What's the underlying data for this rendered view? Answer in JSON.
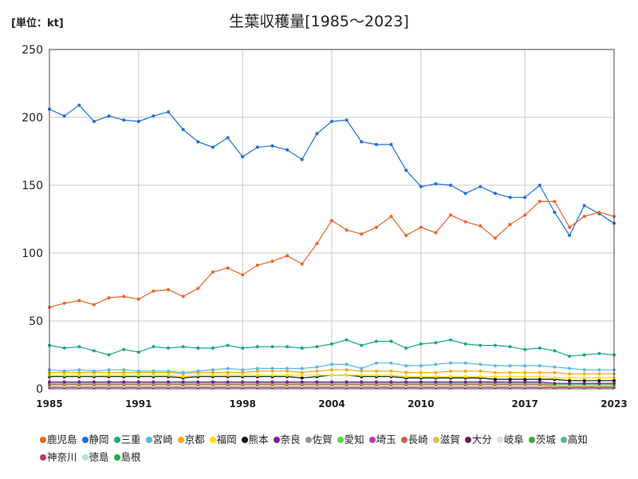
{
  "unit_label": "[単位：kt]",
  "title": "生葉収穫量[1985～2023]",
  "chart_data": {
    "type": "line",
    "title": "生葉収穫量[1985～2023]",
    "unit": "[単位：kt]",
    "x": [
      1985,
      1986,
      1987,
      1988,
      1989,
      1990,
      1991,
      1992,
      1993,
      1994,
      1995,
      1996,
      1997,
      1998,
      1999,
      2000,
      2001,
      2002,
      2003,
      2004,
      2005,
      2006,
      2007,
      2008,
      2009,
      2010,
      2011,
      2012,
      2013,
      2014,
      2015,
      2016,
      2017,
      2018,
      2019,
      2020,
      2021,
      2022,
      2023
    ],
    "xticks": [
      1985,
      1991,
      1998,
      2004,
      2010,
      2017,
      2023
    ],
    "ylim": [
      0,
      250
    ],
    "yticks": [
      0,
      50,
      100,
      150,
      200,
      250
    ],
    "grid": true,
    "legend_position": "bottom",
    "series": [
      {
        "name": "鹿児島",
        "color": "#e8642a",
        "values": [
          60,
          63,
          65,
          62,
          67,
          68,
          66,
          72,
          73,
          68,
          74,
          86,
          89,
          84,
          91,
          94,
          98,
          92,
          107,
          124,
          117,
          114,
          119,
          127,
          113,
          119,
          115,
          128,
          123,
          120,
          111,
          121,
          128,
          138,
          138,
          119,
          127,
          130,
          127
        ]
      },
      {
        "name": "静岡",
        "color": "#1f6ed4",
        "values": [
          206,
          201,
          209,
          197,
          201,
          198,
          197,
          201,
          204,
          191,
          182,
          178,
          185,
          171,
          178,
          179,
          176,
          169,
          188,
          197,
          198,
          182,
          180,
          180,
          161,
          149,
          151,
          150,
          144,
          149,
          144,
          141,
          141,
          150,
          130,
          113,
          135,
          129,
          122
        ]
      },
      {
        "name": "三重",
        "color": "#1aa887",
        "values": [
          32,
          30,
          31,
          28,
          25,
          29,
          27,
          31,
          30,
          31,
          30,
          30,
          32,
          30,
          31,
          31,
          31,
          30,
          31,
          33,
          36,
          32,
          35,
          35,
          30,
          33,
          34,
          36,
          33,
          32,
          32,
          31,
          29,
          30,
          28,
          24,
          25,
          26,
          25
        ]
      },
      {
        "name": "宮崎",
        "color": "#5ab7ea",
        "values": [
          14,
          13,
          14,
          13,
          14,
          14,
          13,
          13,
          13,
          12,
          13,
          14,
          15,
          14,
          15,
          15,
          15,
          15,
          16,
          18,
          18,
          15,
          19,
          19,
          17,
          17,
          18,
          19,
          19,
          18,
          17,
          17,
          17,
          17,
          16,
          15,
          14,
          14,
          14
        ]
      },
      {
        "name": "京都",
        "color": "#f5a81a",
        "values": [
          12,
          12,
          12,
          12,
          12,
          12,
          12,
          12,
          12,
          11,
          12,
          12,
          12,
          12,
          13,
          13,
          13,
          12,
          13,
          14,
          14,
          13,
          13,
          13,
          12,
          12,
          12,
          13,
          13,
          13,
          12,
          12,
          12,
          12,
          12,
          11,
          11,
          11,
          11
        ]
      },
      {
        "name": "福岡",
        "color": "#ffe000",
        "values": [
          10,
          10,
          10,
          10,
          10,
          10,
          10,
          10,
          10,
          9,
          10,
          10,
          10,
          10,
          10,
          10,
          10,
          10,
          10,
          10,
          10,
          10,
          10,
          10,
          9,
          9,
          9,
          9,
          9,
          9,
          9,
          9,
          9,
          9,
          8,
          8,
          8,
          8,
          8
        ]
      },
      {
        "name": "熊本",
        "color": "#111111",
        "values": [
          9,
          9,
          9,
          9,
          9,
          9,
          9,
          9,
          9,
          8,
          9,
          9,
          9,
          9,
          9,
          9,
          9,
          8,
          9,
          10,
          10,
          9,
          9,
          9,
          8,
          8,
          8,
          8,
          8,
          8,
          7,
          7,
          7,
          7,
          7,
          6,
          6,
          6,
          6
        ]
      },
      {
        "name": "奈良",
        "color": "#7b2096",
        "values": [
          5,
          5,
          5,
          5,
          5,
          5,
          5,
          5,
          5,
          5,
          5,
          5,
          5,
          5,
          5,
          5,
          5,
          5,
          5,
          5,
          5,
          5,
          5,
          5,
          5,
          5,
          5,
          5,
          5,
          5,
          5,
          5,
          5,
          5,
          4,
          4,
          4,
          4,
          4
        ]
      },
      {
        "name": "佐賀",
        "color": "#8d95a3",
        "values": [
          5,
          5,
          5,
          5,
          5,
          5,
          5,
          5,
          5,
          5,
          5,
          5,
          5,
          5,
          5,
          5,
          5,
          5,
          5,
          5,
          5,
          5,
          5,
          5,
          5,
          5,
          5,
          5,
          5,
          5,
          5,
          5,
          5,
          5,
          4,
          4,
          4,
          4,
          4
        ]
      },
      {
        "name": "愛知",
        "color": "#55d648",
        "values": [
          4,
          4,
          4,
          4,
          4,
          4,
          4,
          4,
          4,
          4,
          4,
          4,
          4,
          4,
          4,
          4,
          4,
          4,
          4,
          4,
          4,
          4,
          4,
          4,
          4,
          4,
          4,
          4,
          4,
          4,
          4,
          4,
          4,
          4,
          3,
          3,
          3,
          3,
          3
        ]
      },
      {
        "name": "埼玉",
        "color": "#b43ab2",
        "values": [
          4,
          4,
          4,
          4,
          4,
          4,
          4,
          4,
          4,
          4,
          4,
          4,
          4,
          4,
          4,
          4,
          4,
          4,
          4,
          4,
          4,
          4,
          4,
          4,
          4,
          4,
          4,
          4,
          4,
          4,
          4,
          4,
          4,
          4,
          3,
          3,
          3,
          3,
          3
        ]
      },
      {
        "name": "長崎",
        "color": "#c8664a",
        "values": [
          3,
          3,
          3,
          3,
          3,
          3,
          3,
          3,
          3,
          3,
          3,
          3,
          3,
          3,
          3,
          3,
          3,
          3,
          3,
          3,
          3,
          3,
          3,
          3,
          3,
          3,
          3,
          3,
          3,
          3,
          3,
          3,
          3,
          3,
          3,
          3,
          3,
          3,
          3
        ]
      },
      {
        "name": "滋賀",
        "color": "#e3c04e",
        "values": [
          3,
          3,
          3,
          3,
          3,
          3,
          3,
          3,
          3,
          3,
          3,
          3,
          3,
          3,
          3,
          3,
          3,
          3,
          3,
          3,
          3,
          3,
          3,
          3,
          3,
          3,
          3,
          3,
          3,
          3,
          3,
          3,
          3,
          3,
          2,
          2,
          2,
          2,
          2
        ]
      },
      {
        "name": "大分",
        "color": "#6a1f4f",
        "values": [
          3,
          3,
          3,
          3,
          3,
          3,
          3,
          3,
          3,
          3,
          3,
          3,
          3,
          3,
          3,
          3,
          3,
          3,
          3,
          3,
          3,
          3,
          3,
          3,
          3,
          3,
          3,
          3,
          3,
          3,
          3,
          3,
          3,
          3,
          2,
          2,
          2,
          2,
          2
        ]
      },
      {
        "name": "岐阜",
        "color": "#dddddd",
        "values": [
          2,
          2,
          2,
          2,
          2,
          2,
          2,
          2,
          2,
          2,
          2,
          2,
          2,
          2,
          2,
          2,
          2,
          2,
          2,
          2,
          2,
          2,
          2,
          2,
          2,
          2,
          2,
          2,
          2,
          2,
          2,
          2,
          2,
          2,
          2,
          2,
          2,
          2,
          2
        ]
      },
      {
        "name": "茨城",
        "color": "#3fa63c",
        "values": [
          2,
          2,
          2,
          2,
          2,
          2,
          2,
          2,
          2,
          2,
          2,
          2,
          2,
          2,
          2,
          2,
          2,
          2,
          2,
          2,
          2,
          2,
          2,
          2,
          2,
          2,
          2,
          2,
          2,
          2,
          2,
          2,
          2,
          2,
          2,
          2,
          2,
          2,
          2
        ]
      },
      {
        "name": "高知",
        "color": "#5cb88e",
        "values": [
          2,
          2,
          2,
          2,
          2,
          2,
          2,
          2,
          2,
          2,
          2,
          2,
          2,
          2,
          2,
          2,
          2,
          2,
          2,
          2,
          2,
          2,
          2,
          2,
          2,
          2,
          2,
          2,
          2,
          2,
          2,
          2,
          2,
          2,
          2,
          2,
          2,
          2,
          2
        ]
      },
      {
        "name": "神奈川",
        "color": "#b83a6a",
        "values": [
          1,
          1,
          1,
          1,
          1,
          1,
          1,
          1,
          1,
          1,
          1,
          1,
          1,
          1,
          1,
          1,
          1,
          1,
          1,
          1,
          1,
          1,
          1,
          1,
          1,
          1,
          1,
          1,
          1,
          1,
          1,
          1,
          1,
          1,
          1,
          1,
          1,
          1,
          1
        ]
      },
      {
        "name": "徳島",
        "color": "#a9e8d2",
        "values": [
          1,
          1,
          1,
          1,
          1,
          1,
          1,
          1,
          1,
          1,
          1,
          1,
          1,
          1,
          1,
          1,
          1,
          1,
          1,
          1,
          1,
          1,
          1,
          1,
          1,
          1,
          1,
          1,
          1,
          1,
          1,
          1,
          1,
          1,
          1,
          1,
          1,
          1,
          1
        ]
      },
      {
        "name": "島根",
        "color": "#22aa44",
        "values": [
          1,
          1,
          1,
          1,
          1,
          1,
          1,
          1,
          1,
          1,
          1,
          1,
          1,
          1,
          1,
          1,
          1,
          1,
          1,
          1,
          1,
          1,
          1,
          1,
          1,
          1,
          1,
          1,
          1,
          1,
          1,
          1,
          1,
          1,
          1,
          1,
          1,
          1,
          1
        ]
      }
    ]
  }
}
